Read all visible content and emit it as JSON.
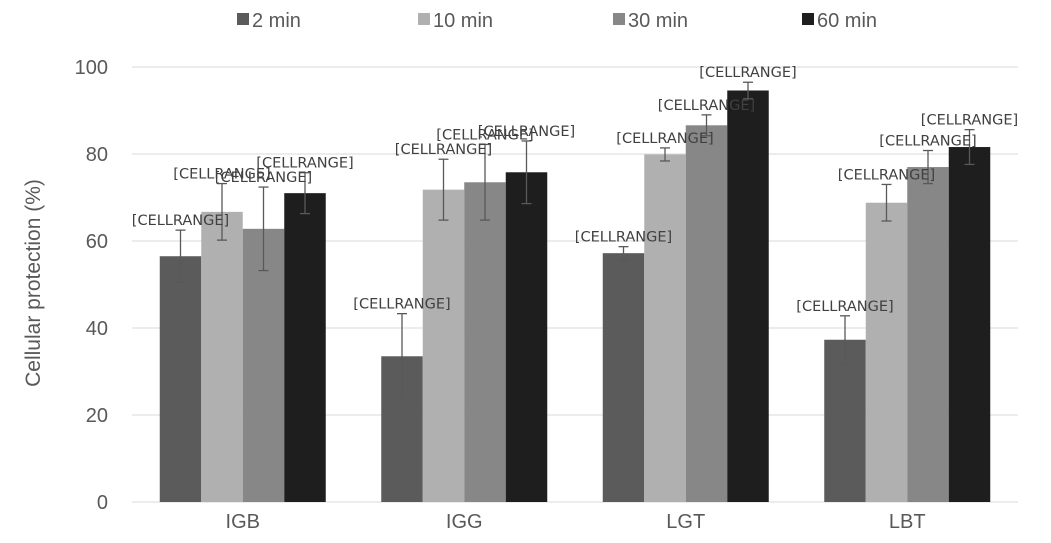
{
  "chart_data": {
    "type": "bar",
    "title": "",
    "xlabel": "",
    "ylabel": "Cellular protection (%)",
    "ylim": [
      0,
      100
    ],
    "yticks": [
      0,
      20,
      40,
      60,
      80,
      100
    ],
    "grid": "horizontal",
    "legend_position": "top",
    "categories": [
      "IGB",
      "IGG",
      "LGT",
      "LBT"
    ],
    "data_label_text": "[CELLRANGE]",
    "series": [
      {
        "name": "2 min",
        "color": "#5b5b5b",
        "values": [
          56.5,
          33.5,
          57.2,
          37.3
        ],
        "errors": [
          6.0,
          9.8,
          1.5,
          5.5
        ]
      },
      {
        "name": "10 min",
        "color": "#b0b0b0",
        "values": [
          66.7,
          71.8,
          79.9,
          68.8
        ],
        "errors": [
          6.5,
          7.0,
          1.5,
          4.2
        ]
      },
      {
        "name": "30 min",
        "color": "#878787",
        "values": [
          62.8,
          73.5,
          86.6,
          77.0
        ],
        "errors": [
          9.6,
          8.7,
          2.4,
          3.8
        ]
      },
      {
        "name": "60 min",
        "color": "#1e1e1e",
        "values": [
          71.0,
          75.8,
          94.6,
          81.6
        ],
        "errors": [
          4.7,
          7.2,
          1.9,
          4.0
        ]
      }
    ]
  }
}
